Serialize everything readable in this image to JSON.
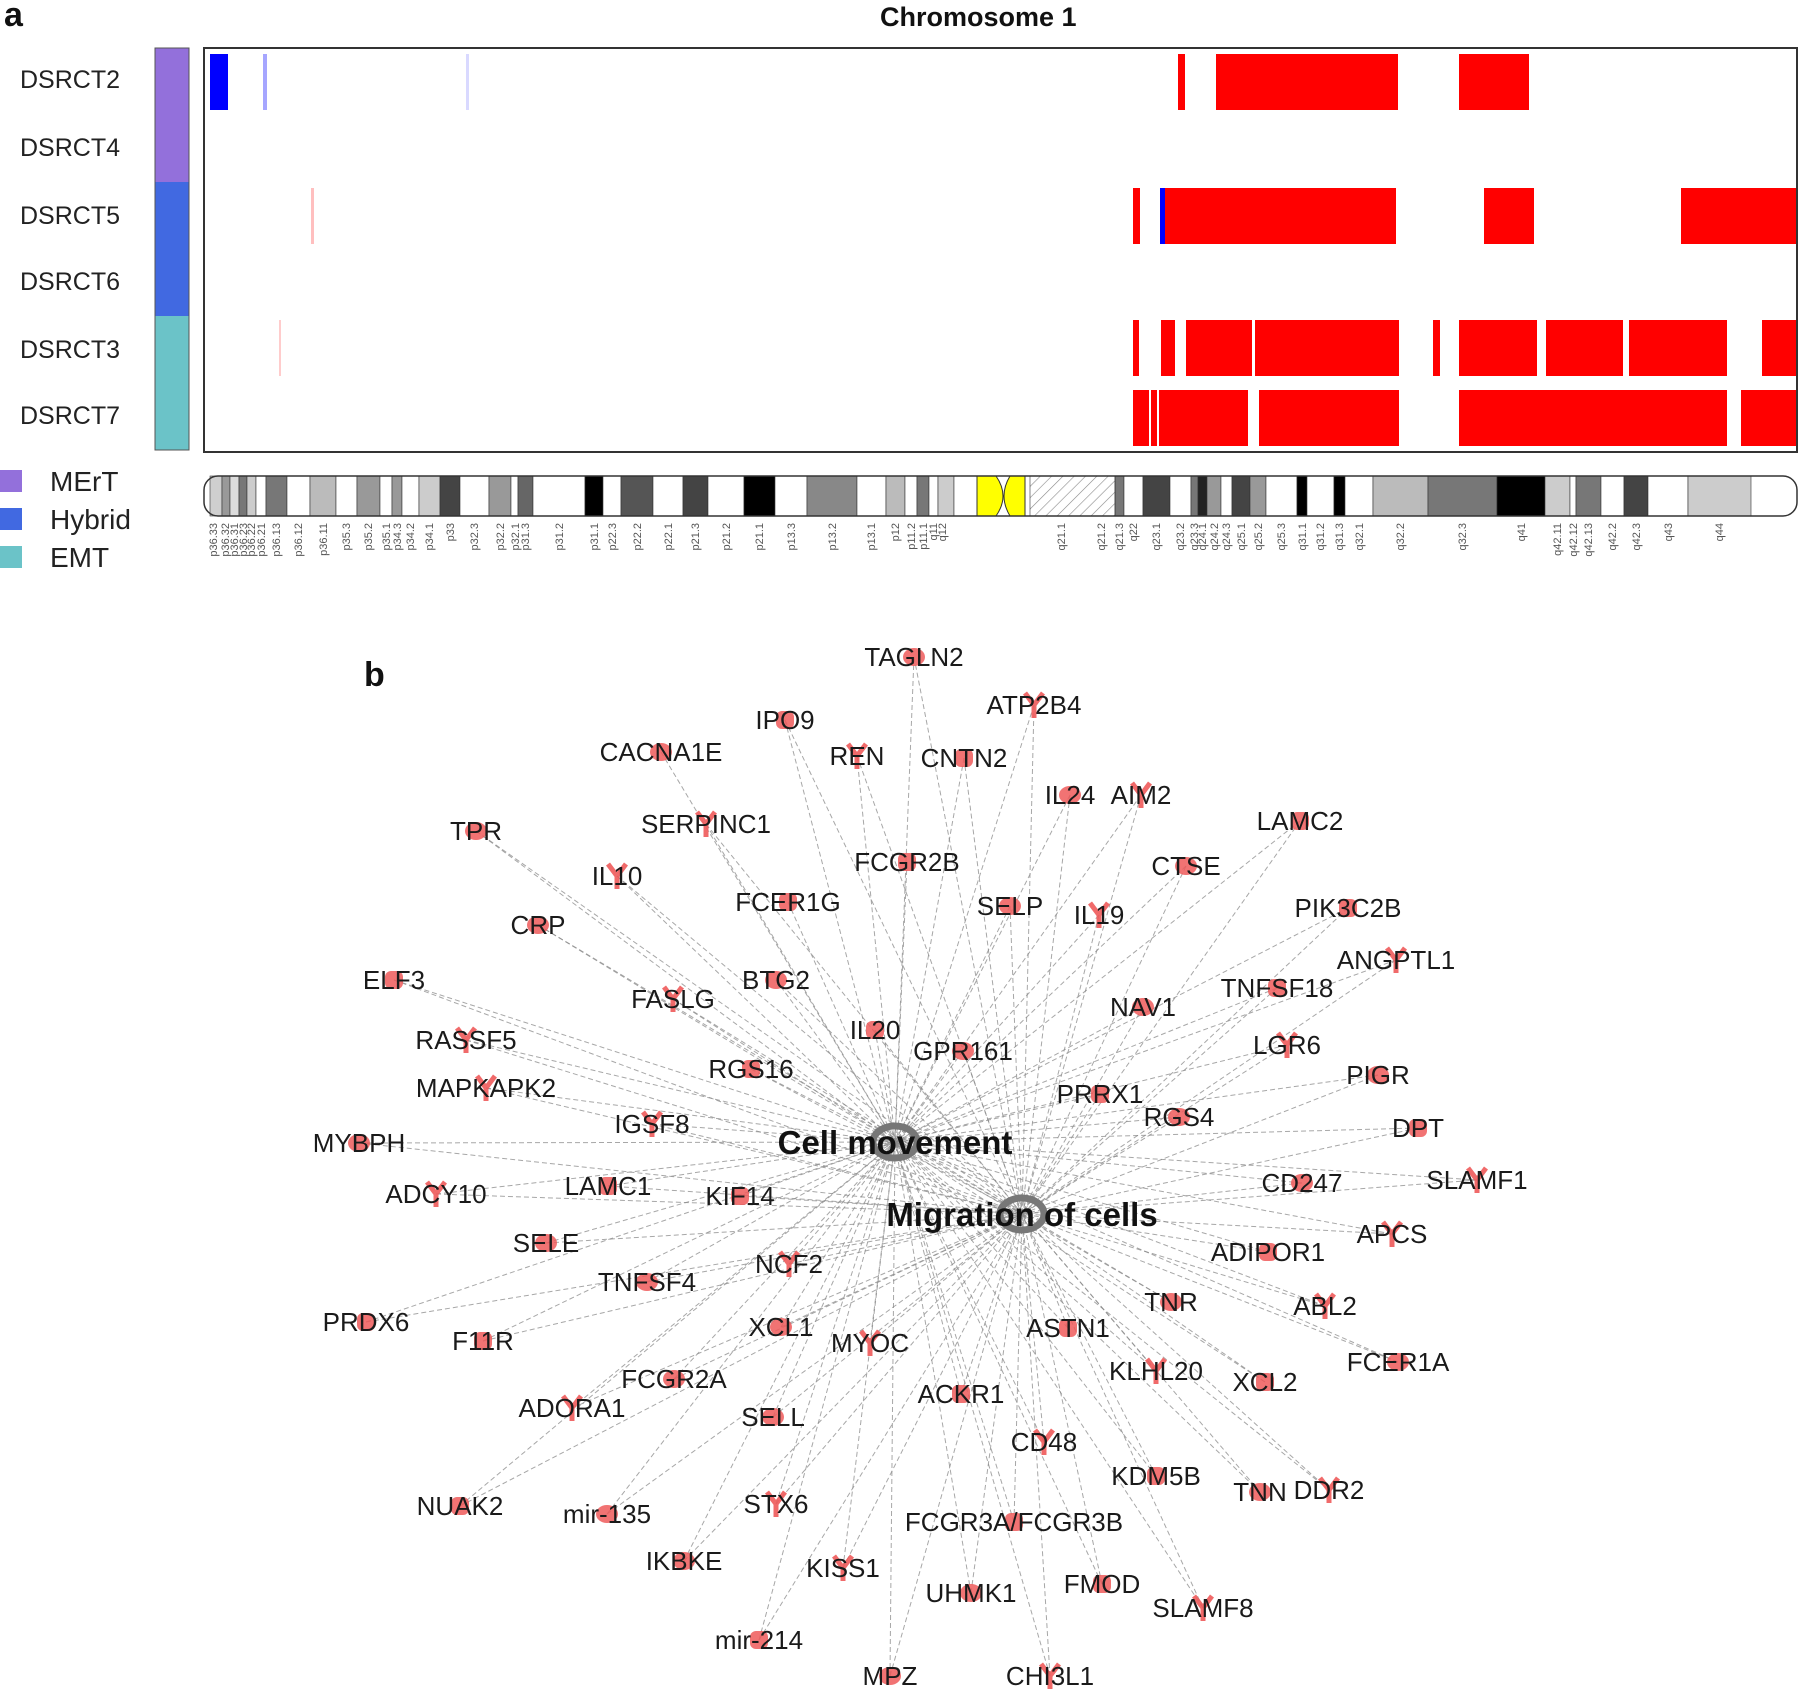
{
  "panel_a": {
    "letter": "a",
    "title": "Chromosome 1",
    "samples": [
      {
        "name": "DSRCT2",
        "group": "MErT"
      },
      {
        "name": "DSRCT4",
        "group": "MErT"
      },
      {
        "name": "DSRCT5",
        "group": "Hybrid"
      },
      {
        "name": "DSRCT6",
        "group": "Hybrid"
      },
      {
        "name": "DSRCT3",
        "group": "EMT"
      },
      {
        "name": "DSRCT7",
        "group": "EMT"
      }
    ],
    "legend": [
      {
        "label": "MErT",
        "color": "#9370db"
      },
      {
        "label": "Hybrid",
        "color": "#4169e1"
      },
      {
        "label": "EMT",
        "color": "#6bc3c8"
      }
    ],
    "colors": {
      "gain": "#ff0000",
      "loss": "#0000ff",
      "centromere": "#ffff00"
    },
    "bands": [
      "p36.33",
      "p36.32",
      "p36.31",
      "p36.23",
      "p36.22",
      "p36.21",
      "p36.13",
      "p36.12",
      "p36.11",
      "p35.3",
      "p35.2",
      "p35.1",
      "p34.3",
      "p34.2",
      "p34.1",
      "p33",
      "p32.3",
      "p32.2",
      "p32.1",
      "p31.3",
      "p31.2",
      "p31.1",
      "p22.3",
      "p22.2",
      "p22.1",
      "p21.3",
      "p21.2",
      "p21.1",
      "p13.3",
      "p13.2",
      "p13.1",
      "p12",
      "p11.2",
      "p11.1",
      "q11",
      "q12",
      "q21.1",
      "q21.2",
      "q21.3",
      "q22",
      "q23.1",
      "q23.2",
      "q23.3",
      "q24.1",
      "q24.2",
      "q24.3",
      "q25.1",
      "q25.2",
      "q25.3",
      "q31.1",
      "q31.2",
      "q31.3",
      "q32.1",
      "q32.2",
      "q32.3",
      "q41",
      "q42.11",
      "q42.12",
      "q42.13",
      "q42.2",
      "q42.3",
      "q43",
      "q44"
    ]
  },
  "panel_b": {
    "letter": "b",
    "hubs": [
      "Cell movement",
      "Migration of cells"
    ],
    "genes": [
      "TAGLN2",
      "ATP2B4",
      "IPO9",
      "CACNA1E",
      "REN",
      "CNTN2",
      "IL24",
      "AIM2",
      "LAMC2",
      "TPR",
      "SERPINC1",
      "FCGR2B",
      "CTSE",
      "IL10",
      "FCER1G",
      "SELP",
      "IL19",
      "PIK3C2B",
      "CRP",
      "ANGPTL1",
      "ELF3",
      "BTG2",
      "FASLG",
      "TNFSF18",
      "NAV1",
      "RASSF5",
      "IL20",
      "GPR161",
      "LGR6",
      "RGS16",
      "PIGR",
      "MAPKAPK2",
      "PRRX1",
      "RGS4",
      "IGSF8",
      "DPT",
      "MYBPH",
      "ADCY10",
      "LAMC1",
      "CD247",
      "SLAMF1",
      "KIF14",
      "SELE",
      "APCS",
      "ADIPOR1",
      "TNFSF4",
      "NCF2",
      "PRDX6",
      "TNR",
      "ABL2",
      "F11R",
      "XCL1",
      "MYOC",
      "ASTN1",
      "FCER1A",
      "KLHL20",
      "XCL2",
      "FCGR2A",
      "ADORA1",
      "ACKR1",
      "SELL",
      "CD48",
      "KDM5B",
      "TNN",
      "DDR2",
      "NUAK2",
      "mir-135",
      "STX6",
      "FCGR3A/FCGR3B",
      "IKBKE",
      "KISS1",
      "FMOD",
      "UHMK1",
      "SLAMF8",
      "mir-214",
      "MPZ",
      "CHI3L1"
    ]
  }
}
